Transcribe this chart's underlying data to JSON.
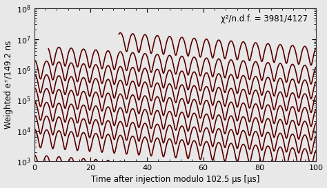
{
  "xlabel": "Time after injection modulo 102.5 μs [μs]",
  "ylabel": "Weighted e⁺/149.2 ns",
  "annotation": "χ²/n.d.f. = 3981/4127",
  "xmin": 0,
  "xmax": 100,
  "ymin": 1000.0,
  "ymax": 100000000.0,
  "n_curves": 9,
  "muon_lifetime_us": 64.4,
  "osc_freq": 0.229,
  "osc_amplitude": 0.6,
  "offsets_log10": [
    7.0,
    6.55,
    6.1,
    5.65,
    5.2,
    4.75,
    4.3,
    3.85,
    3.0
  ],
  "x_starts": [
    30,
    5,
    0,
    0,
    0,
    0,
    0,
    0,
    0
  ],
  "curve_color_dark": "#6B0000",
  "curve_color_black": "#1a0000",
  "bg_color": "#e8e8e8",
  "annotation_fontsize": 8.5,
  "label_fontsize": 8.5,
  "tick_labelsize": 8
}
